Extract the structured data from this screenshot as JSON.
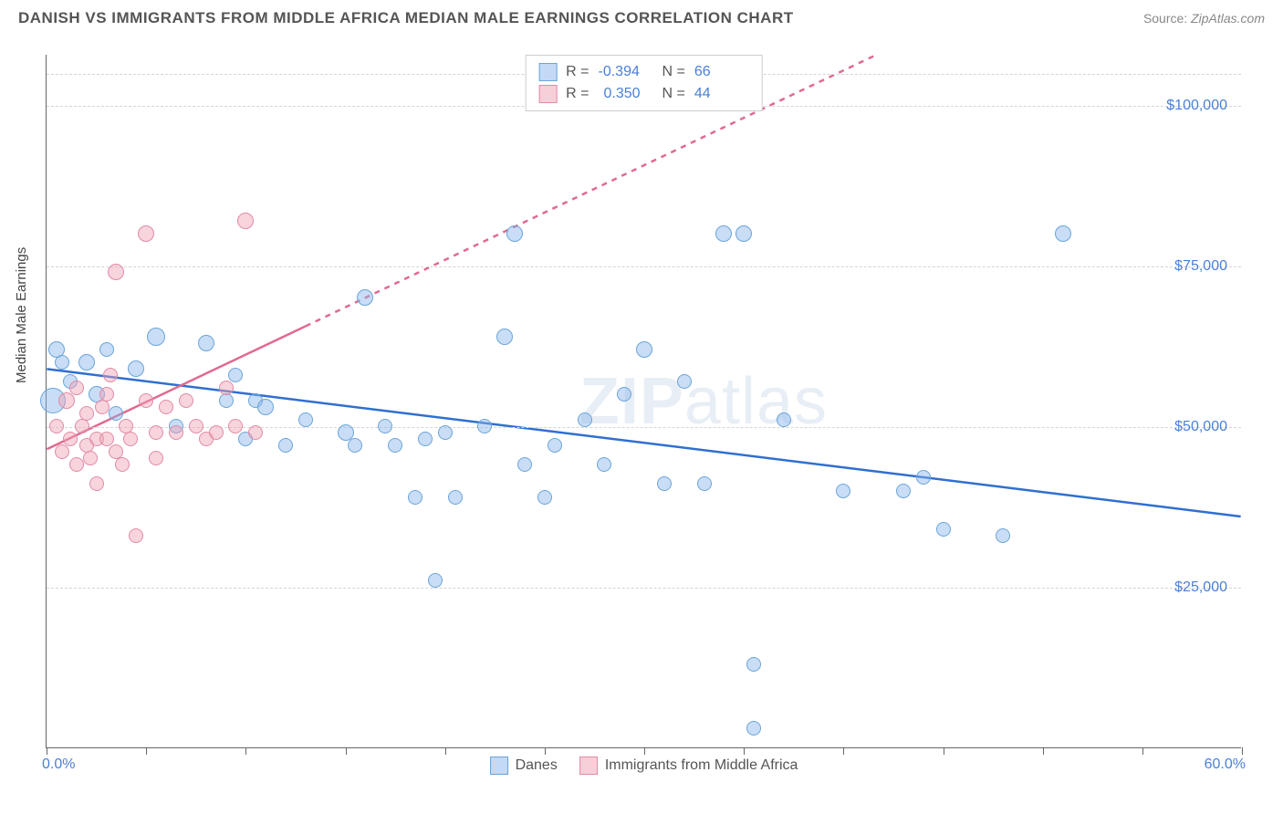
{
  "header": {
    "title": "DANISH VS IMMIGRANTS FROM MIDDLE AFRICA MEDIAN MALE EARNINGS CORRELATION CHART",
    "source_prefix": "Source:",
    "source_name": "ZipAtlas.com"
  },
  "watermark": {
    "zip": "ZIP",
    "atlas": "atlas"
  },
  "chart": {
    "type": "scatter",
    "ylabel": "Median Male Earnings",
    "xlim": [
      0,
      60
    ],
    "ylim": [
      0,
      108000
    ],
    "background_color": "#ffffff",
    "grid_color": "#d5d5d5",
    "xaxis_min_label": "0.0%",
    "xaxis_max_label": "60.0%",
    "yticks": [
      {
        "v": 25000,
        "label": "$25,000"
      },
      {
        "v": 50000,
        "label": "$50,000"
      },
      {
        "v": 75000,
        "label": "$75,000"
      },
      {
        "v": 100000,
        "label": "$100,000"
      },
      {
        "v": 105000,
        "label": ""
      }
    ],
    "xticks": [
      0,
      5,
      10,
      15,
      20,
      25,
      30,
      35,
      40,
      45,
      50,
      55,
      60
    ],
    "series": [
      {
        "name": "Danes",
        "color_fill": "rgba(135,180,235,0.45)",
        "color_stroke": "#6aa5d9",
        "line_color": "#2f6fd0",
        "line_width": 2.5,
        "line_dashed": false,
        "R": "-0.394",
        "N": "66",
        "trend": {
          "x1": 0,
          "y1": 59000,
          "x2": 60,
          "y2": 36000
        },
        "points": [
          {
            "x": 0.5,
            "y": 62000,
            "r": 9
          },
          {
            "x": 0.8,
            "y": 60000,
            "r": 8
          },
          {
            "x": 0.3,
            "y": 54000,
            "r": 14
          },
          {
            "x": 1.2,
            "y": 57000,
            "r": 8
          },
          {
            "x": 2.0,
            "y": 60000,
            "r": 9
          },
          {
            "x": 2.5,
            "y": 55000,
            "r": 9
          },
          {
            "x": 3.0,
            "y": 62000,
            "r": 8
          },
          {
            "x": 3.5,
            "y": 52000,
            "r": 8
          },
          {
            "x": 4.5,
            "y": 59000,
            "r": 9
          },
          {
            "x": 5.5,
            "y": 64000,
            "r": 10
          },
          {
            "x": 6.5,
            "y": 50000,
            "r": 8
          },
          {
            "x": 8.0,
            "y": 63000,
            "r": 9
          },
          {
            "x": 9.0,
            "y": 54000,
            "r": 8
          },
          {
            "x": 9.5,
            "y": 58000,
            "r": 8
          },
          {
            "x": 10.0,
            "y": 48000,
            "r": 8
          },
          {
            "x": 10.5,
            "y": 54000,
            "r": 8
          },
          {
            "x": 11.0,
            "y": 53000,
            "r": 9
          },
          {
            "x": 12.0,
            "y": 47000,
            "r": 8
          },
          {
            "x": 13.0,
            "y": 51000,
            "r": 8
          },
          {
            "x": 15.0,
            "y": 49000,
            "r": 9
          },
          {
            "x": 15.5,
            "y": 47000,
            "r": 8
          },
          {
            "x": 16.0,
            "y": 70000,
            "r": 9
          },
          {
            "x": 17.0,
            "y": 50000,
            "r": 8
          },
          {
            "x": 17.5,
            "y": 47000,
            "r": 8
          },
          {
            "x": 18.5,
            "y": 39000,
            "r": 8
          },
          {
            "x": 19.0,
            "y": 48000,
            "r": 8
          },
          {
            "x": 19.5,
            "y": 26000,
            "r": 8
          },
          {
            "x": 20.0,
            "y": 49000,
            "r": 8
          },
          {
            "x": 20.5,
            "y": 39000,
            "r": 8
          },
          {
            "x": 22.0,
            "y": 50000,
            "r": 8
          },
          {
            "x": 23.0,
            "y": 64000,
            "r": 9
          },
          {
            "x": 23.5,
            "y": 80000,
            "r": 9
          },
          {
            "x": 24.0,
            "y": 44000,
            "r": 8
          },
          {
            "x": 25.0,
            "y": 39000,
            "r": 8
          },
          {
            "x": 25.5,
            "y": 47000,
            "r": 8
          },
          {
            "x": 27.0,
            "y": 51000,
            "r": 8
          },
          {
            "x": 28.0,
            "y": 44000,
            "r": 8
          },
          {
            "x": 29.0,
            "y": 55000,
            "r": 8
          },
          {
            "x": 30.0,
            "y": 62000,
            "r": 9
          },
          {
            "x": 31.0,
            "y": 41000,
            "r": 8
          },
          {
            "x": 32.0,
            "y": 57000,
            "r": 8
          },
          {
            "x": 33.0,
            "y": 41000,
            "r": 8
          },
          {
            "x": 34.0,
            "y": 80000,
            "r": 9
          },
          {
            "x": 35.0,
            "y": 80000,
            "r": 9
          },
          {
            "x": 35.5,
            "y": 13000,
            "r": 8
          },
          {
            "x": 35.5,
            "y": 3000,
            "r": 8
          },
          {
            "x": 37.0,
            "y": 51000,
            "r": 8
          },
          {
            "x": 40.0,
            "y": 40000,
            "r": 8
          },
          {
            "x": 43.0,
            "y": 40000,
            "r": 8
          },
          {
            "x": 44.0,
            "y": 42000,
            "r": 8
          },
          {
            "x": 45.0,
            "y": 34000,
            "r": 8
          },
          {
            "x": 48.0,
            "y": 33000,
            "r": 8
          },
          {
            "x": 51.0,
            "y": 80000,
            "r": 9
          }
        ]
      },
      {
        "name": "Immigrants from Middle Africa",
        "color_fill": "rgba(240,160,180,0.45)",
        "color_stroke": "#e08ba5",
        "line_color": "#e06a8f",
        "line_width": 2.5,
        "line_dashed": true,
        "R": "0.350",
        "N": "44",
        "trend": {
          "x1": 0,
          "y1": 46500,
          "x2": 60,
          "y2": 135000
        },
        "trend_solid_to_x": 13,
        "points": [
          {
            "x": 0.5,
            "y": 50000,
            "r": 8
          },
          {
            "x": 0.8,
            "y": 46000,
            "r": 8
          },
          {
            "x": 1.0,
            "y": 54000,
            "r": 9
          },
          {
            "x": 1.2,
            "y": 48000,
            "r": 8
          },
          {
            "x": 1.5,
            "y": 56000,
            "r": 8
          },
          {
            "x": 1.5,
            "y": 44000,
            "r": 8
          },
          {
            "x": 1.8,
            "y": 50000,
            "r": 8
          },
          {
            "x": 2.0,
            "y": 47000,
            "r": 8
          },
          {
            "x": 2.0,
            "y": 52000,
            "r": 8
          },
          {
            "x": 2.2,
            "y": 45000,
            "r": 8
          },
          {
            "x": 2.5,
            "y": 48000,
            "r": 8
          },
          {
            "x": 2.5,
            "y": 41000,
            "r": 8
          },
          {
            "x": 2.8,
            "y": 53000,
            "r": 8
          },
          {
            "x": 3.0,
            "y": 55000,
            "r": 8
          },
          {
            "x": 3.0,
            "y": 48000,
            "r": 8
          },
          {
            "x": 3.2,
            "y": 58000,
            "r": 8
          },
          {
            "x": 3.5,
            "y": 74000,
            "r": 9
          },
          {
            "x": 3.5,
            "y": 46000,
            "r": 8
          },
          {
            "x": 3.8,
            "y": 44000,
            "r": 8
          },
          {
            "x": 4.0,
            "y": 50000,
            "r": 8
          },
          {
            "x": 4.2,
            "y": 48000,
            "r": 8
          },
          {
            "x": 4.5,
            "y": 33000,
            "r": 8
          },
          {
            "x": 5.0,
            "y": 54000,
            "r": 8
          },
          {
            "x": 5.0,
            "y": 80000,
            "r": 9
          },
          {
            "x": 5.5,
            "y": 45000,
            "r": 8
          },
          {
            "x": 5.5,
            "y": 49000,
            "r": 8
          },
          {
            "x": 6.0,
            "y": 53000,
            "r": 8
          },
          {
            "x": 6.5,
            "y": 49000,
            "r": 8
          },
          {
            "x": 7.0,
            "y": 54000,
            "r": 8
          },
          {
            "x": 7.5,
            "y": 50000,
            "r": 8
          },
          {
            "x": 8.0,
            "y": 48000,
            "r": 8
          },
          {
            "x": 8.5,
            "y": 49000,
            "r": 8
          },
          {
            "x": 9.0,
            "y": 56000,
            "r": 8
          },
          {
            "x": 9.5,
            "y": 50000,
            "r": 8
          },
          {
            "x": 10.0,
            "y": 82000,
            "r": 9
          },
          {
            "x": 10.5,
            "y": 49000,
            "r": 8
          }
        ]
      }
    ]
  },
  "legend_top": {
    "R_label": "R =",
    "N_label": "N ="
  },
  "legend_bottom": {
    "series1": "Danes",
    "series2": "Immigrants from Middle Africa"
  }
}
